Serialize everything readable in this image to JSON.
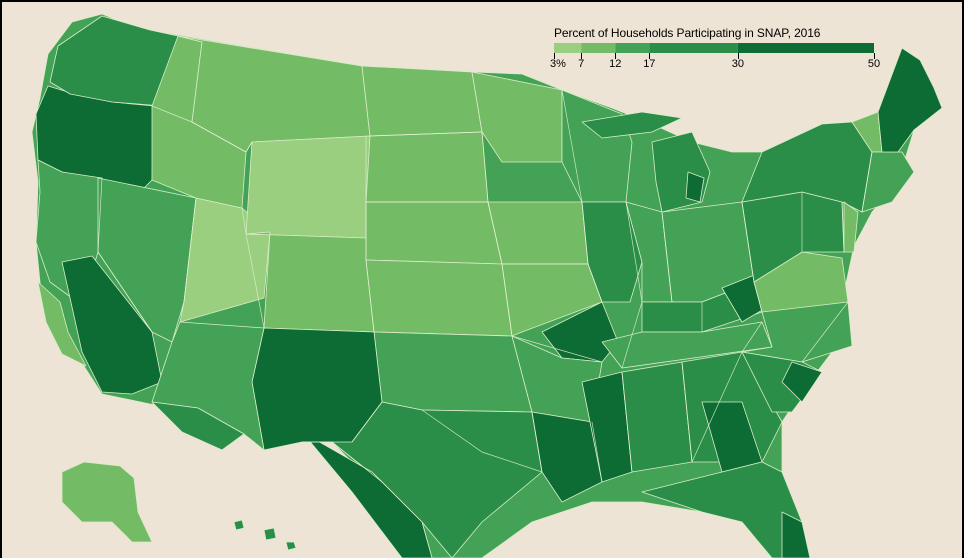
{
  "legend": {
    "title": "Percent of Households Participating in SNAP, 2016",
    "breaks": [
      {
        "label": "3%",
        "value": 3
      },
      {
        "label": "7",
        "value": 7
      },
      {
        "label": "12",
        "value": 12
      },
      {
        "label": "17",
        "value": 17
      },
      {
        "label": "30",
        "value": 30
      },
      {
        "label": "50",
        "value": 50
      }
    ],
    "bins": [
      {
        "from": 3,
        "to": 7,
        "color": "#99cf7e"
      },
      {
        "from": 7,
        "to": 12,
        "color": "#74bb66"
      },
      {
        "from": 12,
        "to": 17,
        "color": "#43a255"
      },
      {
        "from": 17,
        "to": 30,
        "color": "#2a8e48"
      },
      {
        "from": 30,
        "to": 50,
        "color": "#0d6b34"
      }
    ]
  },
  "colors": {
    "background": "#ede4d5",
    "border": "#000000",
    "boundary": "#d9ecc8"
  }
}
